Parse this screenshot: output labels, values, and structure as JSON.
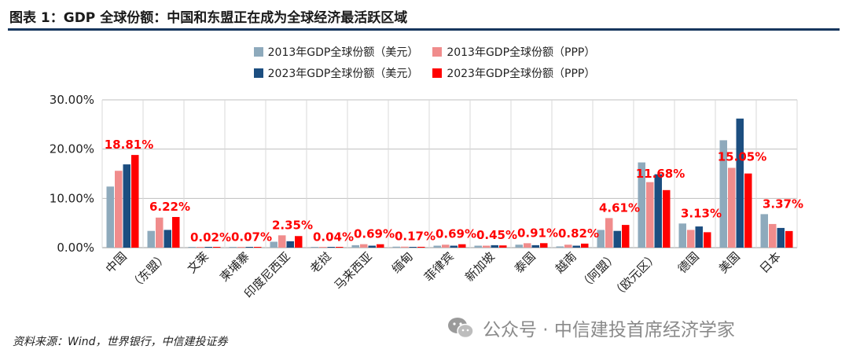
{
  "header": {
    "title": "图表 1：GDP 全球份额：中国和东盟正在成为全球经济最活跃区域"
  },
  "footer": {
    "source": "资料来源：Wind，世界银行，中信建投证券"
  },
  "watermark": {
    "text": "公众号 · 中信建投首席经济学家",
    "icon": "wechat-icon"
  },
  "chart_data": {
    "type": "bar",
    "categories": [
      "中国",
      "（东盟）",
      "文莱",
      "柬埔寨",
      "印度尼西亚",
      "老挝",
      "马来西亚",
      "缅甸",
      "菲律宾",
      "新加坡",
      "泰国",
      "越南",
      "（阿盟）",
      "（欧元区）",
      "德国",
      "美国",
      "日本"
    ],
    "series": [
      {
        "name": "2013年GDP全球份额（美元）",
        "color": "#8eaabc",
        "values": [
          12.4,
          3.4,
          0.02,
          0.06,
          1.2,
          0.02,
          0.5,
          0.2,
          0.4,
          0.4,
          0.6,
          0.25,
          3.6,
          17.3,
          4.9,
          21.8,
          6.8
        ]
      },
      {
        "name": "2013年GDP全球份额（PPP）",
        "color": "#f08c8c",
        "values": [
          15.6,
          6.1,
          0.03,
          0.05,
          2.5,
          0.03,
          0.7,
          0.2,
          0.6,
          0.4,
          0.9,
          0.6,
          6.0,
          13.3,
          3.6,
          16.2,
          4.8
        ]
      },
      {
        "name": "2023年GDP全球份额（美元）",
        "color": "#1c4e80",
        "values": [
          16.9,
          3.6,
          0.02,
          0.03,
          1.3,
          0.02,
          0.4,
          0.1,
          0.4,
          0.5,
          0.5,
          0.4,
          3.4,
          14.9,
          4.3,
          26.2,
          4.0
        ]
      },
      {
        "name": "2023年GDP全球份额（PPP）",
        "color": "#ff0000",
        "values": [
          18.81,
          6.22,
          0.02,
          0.07,
          2.35,
          0.04,
          0.69,
          0.17,
          0.69,
          0.45,
          0.91,
          0.82,
          4.61,
          11.68,
          3.13,
          15.05,
          3.37
        ]
      }
    ],
    "data_labels": [
      "18.81%",
      "6.22%",
      "0.02%",
      "0.07%",
      "2.35%",
      "0.04%",
      "0.69%",
      "0.17%",
      "0.69%",
      "0.45%",
      "0.91%",
      "0.82%",
      "4.61%",
      "11.68%",
      "3.13%",
      "15.05%",
      "3.37%"
    ],
    "data_label_color": "#ff0000",
    "y_ticks": [
      "0.00%",
      "10.00%",
      "20.00%",
      "30.00%"
    ],
    "y_tick_values": [
      0,
      10,
      20,
      30
    ],
    "ylim": [
      0,
      30
    ],
    "grid": true,
    "legend_position": "top"
  }
}
